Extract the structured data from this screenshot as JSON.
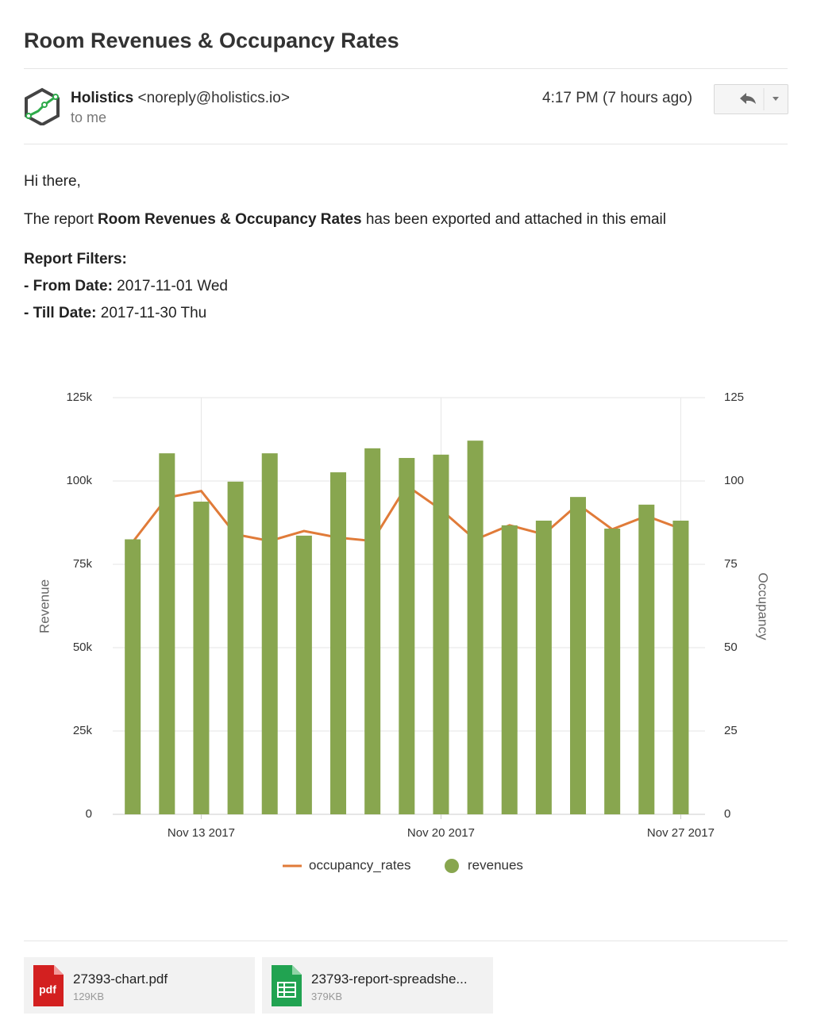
{
  "email": {
    "subject": "Room Revenues & Occupancy Rates",
    "sender_name": "Holistics",
    "sender_email": "<noreply@holistics.io>",
    "recipient": "to me",
    "time": "4:17 PM (7 hours ago)",
    "greeting": "Hi there,",
    "intro_prefix": "The report ",
    "report_name": "Room Revenues & Occupancy Rates",
    "intro_suffix": " has been exported and attached in this email",
    "filters_title": "Report Filters:",
    "filters": [
      {
        "label": "- From Date:",
        "value": " 2017-11-01 Wed"
      },
      {
        "label": "- Till Date:",
        "value": " 2017-11-30 Thu"
      }
    ],
    "attachments": [
      {
        "icon_label": "pdf",
        "name": "27393-chart.pdf",
        "size": "129KB"
      },
      {
        "name": "23793-report-spreadshe...",
        "size": "379KB"
      }
    ]
  },
  "chart_data": {
    "type": "bar",
    "x": [
      "2017-11-11",
      "2017-11-12",
      "2017-11-13",
      "2017-11-14",
      "2017-11-15",
      "2017-11-16",
      "2017-11-17",
      "2017-11-18",
      "2017-11-19",
      "2017-11-20",
      "2017-11-21",
      "2017-11-22",
      "2017-11-23",
      "2017-11-24",
      "2017-11-25",
      "2017-11-26",
      "2017-11-27"
    ],
    "xlim": [
      "2017-11-10T10:00",
      "2017-11-27T17:00"
    ],
    "xticks": [
      {
        "value": "2017-11-13",
        "label": "Nov 13 2017"
      },
      {
        "value": "2017-11-20",
        "label": "Nov 20 2017"
      },
      {
        "value": "2017-11-27",
        "label": "Nov 27 2017"
      }
    ],
    "ylabel": "Revenue",
    "y2label": "Occupancy",
    "ylim": [
      0,
      125000
    ],
    "yticks": [
      {
        "value": 0,
        "label": "0"
      },
      {
        "value": 25000,
        "label": "25k"
      },
      {
        "value": 50000,
        "label": "50k"
      },
      {
        "value": 75000,
        "label": "75k"
      },
      {
        "value": 100000,
        "label": "100k"
      },
      {
        "value": 125000,
        "label": "125k"
      }
    ],
    "y2lim": [
      0,
      125
    ],
    "y2ticks": [
      0,
      25,
      50,
      75,
      100,
      125
    ],
    "grid": true,
    "legend": "bottom",
    "series": [
      {
        "name": "occupancy_rates",
        "type": "line",
        "axis": "y2",
        "color": "#e07b39",
        "values": [
          81.7,
          95,
          97,
          84,
          82,
          85,
          83,
          82,
          98.6,
          91.4,
          82.4,
          86.7,
          84,
          93,
          85.5,
          89.5,
          85.7
        ]
      },
      {
        "name": "revenues",
        "type": "bar",
        "color": "#88a64f",
        "values": [
          82500,
          108300,
          93800,
          99800,
          108300,
          83600,
          102600,
          109800,
          106900,
          107900,
          112100,
          86700,
          88100,
          95200,
          85700,
          92900,
          88100
        ]
      }
    ]
  }
}
